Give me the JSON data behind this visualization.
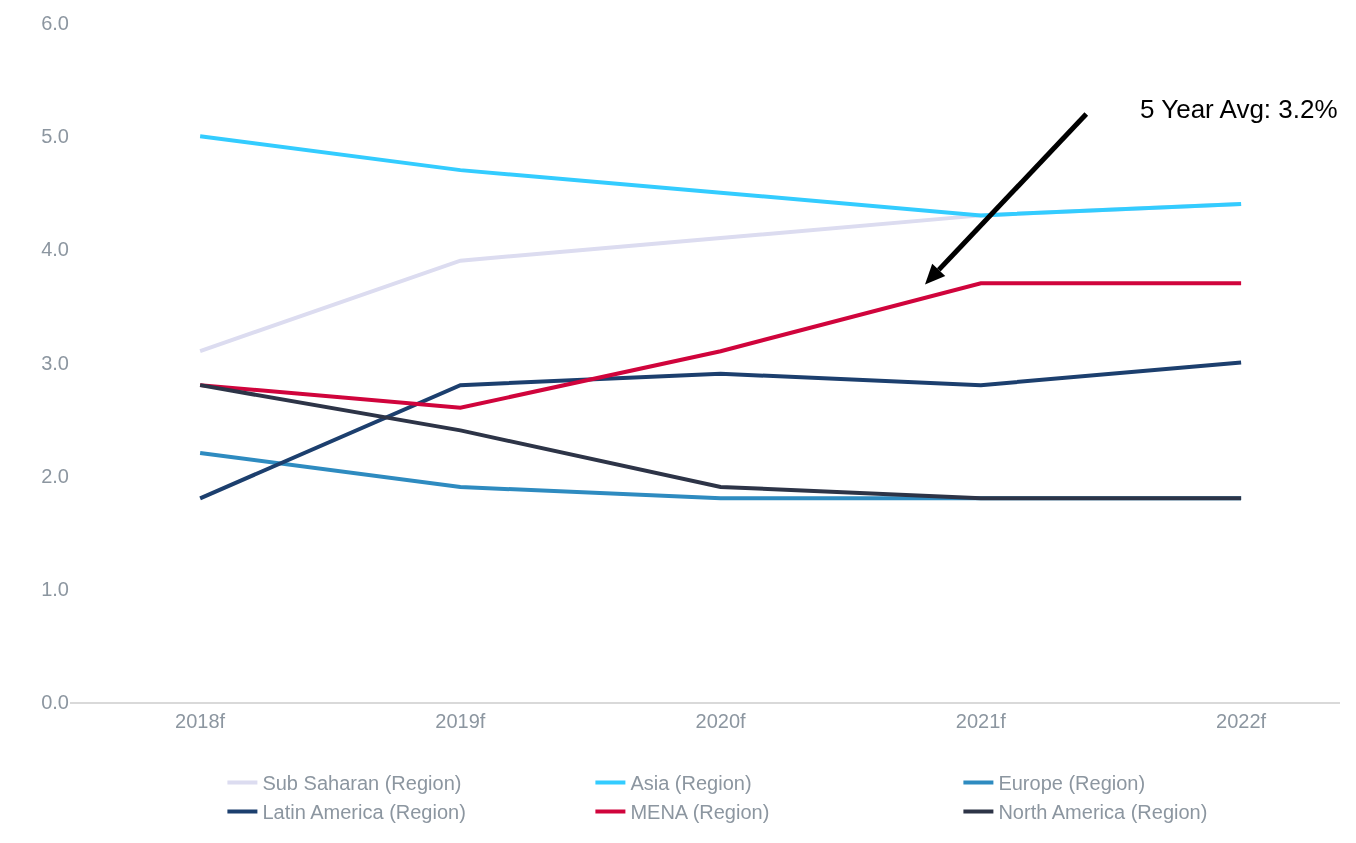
{
  "chart_data": {
    "type": "line",
    "categories": [
      "2018f",
      "2019f",
      "2020f",
      "2021f",
      "2022f"
    ],
    "series": [
      {
        "name": "Sub Saharan (Region)",
        "color": "#dcdcf0",
        "values": [
          3.1,
          3.9,
          4.1,
          4.3,
          4.4
        ]
      },
      {
        "name": "Asia (Region)",
        "color": "#33ccff",
        "values": [
          5.0,
          4.7,
          4.5,
          4.3,
          4.4
        ]
      },
      {
        "name": "Europe (Region)",
        "color": "#2e8bc0",
        "values": [
          2.2,
          1.9,
          1.8,
          1.8,
          1.8
        ]
      },
      {
        "name": "Latin America (Region)",
        "color": "#1c3f6e",
        "values": [
          1.8,
          2.8,
          2.9,
          2.8,
          3.0
        ]
      },
      {
        "name": "MENA (Region)",
        "color": "#d0043c",
        "values": [
          2.8,
          2.6,
          3.1,
          3.7,
          3.7
        ]
      },
      {
        "name": "North America (Region)",
        "color": "#2d3447",
        "values": [
          2.8,
          2.4,
          1.9,
          1.8,
          1.8
        ]
      }
    ],
    "ylim": [
      0,
      6
    ],
    "yticks": [
      {
        "value": 0,
        "label": "0.0"
      },
      {
        "value": 1,
        "label": "1.0"
      },
      {
        "value": 2,
        "label": "2.0"
      },
      {
        "value": 3,
        "label": "3.0"
      },
      {
        "value": 4,
        "label": "4.0"
      },
      {
        "value": 5,
        "label": "5.0"
      },
      {
        "value": 6,
        "label": "6.0"
      }
    ],
    "annotations": [
      "5 Year Avg: 3.2%"
    ],
    "grid": false,
    "legend": "bottom",
    "marker": "none",
    "line_style": "solid"
  }
}
